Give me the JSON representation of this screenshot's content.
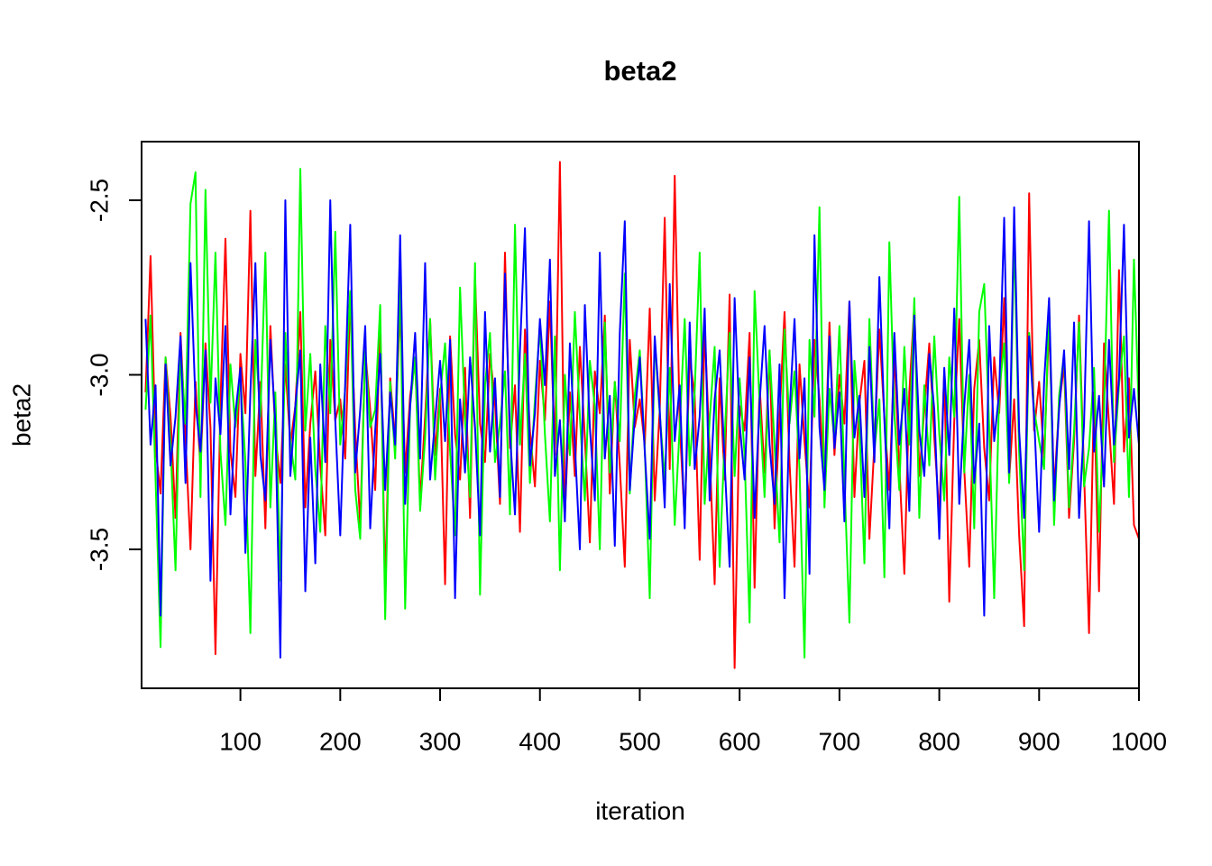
{
  "chart_data": {
    "type": "line",
    "title": "beta2",
    "x_label": "iteration",
    "y_label": "beta2",
    "xlim": [
      1,
      1000
    ],
    "ylim": [
      -3.898,
      -2.332
    ],
    "xticks": [
      100,
      200,
      300,
      400,
      500,
      600,
      700,
      800,
      900,
      1000
    ],
    "yticks": [
      -2.5,
      {
        "value": -3,
        "label": "-3.0"
      },
      -3.5
    ],
    "x": [
      5,
      10,
      15,
      20,
      25,
      30,
      35,
      40,
      45,
      50,
      55,
      60,
      65,
      70,
      75,
      80,
      85,
      90,
      95,
      100,
      105,
      110,
      115,
      120,
      125,
      130,
      135,
      140,
      145,
      150,
      155,
      160,
      165,
      170,
      175,
      180,
      185,
      190,
      195,
      200,
      205,
      210,
      215,
      220,
      225,
      230,
      235,
      240,
      245,
      250,
      255,
      260,
      265,
      270,
      275,
      280,
      285,
      290,
      295,
      300,
      305,
      310,
      315,
      320,
      325,
      330,
      335,
      340,
      345,
      350,
      355,
      360,
      365,
      370,
      375,
      380,
      385,
      390,
      395,
      400,
      405,
      410,
      415,
      420,
      425,
      430,
      435,
      440,
      445,
      450,
      455,
      460,
      465,
      470,
      475,
      480,
      485,
      490,
      495,
      500,
      505,
      510,
      515,
      520,
      525,
      530,
      535,
      540,
      545,
      550,
      555,
      560,
      565,
      570,
      575,
      580,
      585,
      590,
      595,
      600,
      605,
      610,
      615,
      620,
      625,
      630,
      635,
      640,
      645,
      650,
      655,
      660,
      665,
      670,
      675,
      680,
      685,
      690,
      695,
      700,
      705,
      710,
      715,
      720,
      725,
      730,
      735,
      740,
      745,
      750,
      755,
      760,
      765,
      770,
      775,
      780,
      785,
      790,
      795,
      800,
      805,
      810,
      815,
      820,
      825,
      830,
      835,
      840,
      845,
      850,
      855,
      860,
      865,
      870,
      875,
      880,
      885,
      890,
      895,
      900,
      905,
      910,
      915,
      920,
      925,
      930,
      935,
      940,
      945,
      950,
      955,
      960,
      965,
      970,
      975,
      980,
      985,
      990,
      995,
      1000
    ],
    "series": [
      {
        "color": "#ff0000",
        "values": [
          -3.05,
          -2.66,
          -3.21,
          -3.34,
          -2.95,
          -3.12,
          -3.41,
          -2.88,
          -3.18,
          -3.5,
          -3.02,
          -3.27,
          -2.91,
          -3.15,
          -3.8,
          -3.08,
          -2.61,
          -3.22,
          -3.35,
          -2.94,
          -3.11,
          -2.53,
          -3.29,
          -3.02,
          -3.44,
          -2.86,
          -3.17,
          -3.31,
          -2.97,
          -3.2,
          -3.09,
          -2.82,
          -3.38,
          -3.14,
          -2.99,
          -3.26,
          -3.46,
          -2.9,
          -3.13,
          -3.07,
          -3.24,
          -2.78,
          -3.16,
          -3.43,
          -2.93,
          -3.1,
          -3.33,
          -2.85,
          -3.61,
          -3.01,
          -3.19,
          -2.8,
          -3.28,
          -3.06,
          -2.96,
          -3.36,
          -3.12,
          -2.84,
          -3.23,
          -3.04,
          -3.6,
          -2.89,
          -3.17,
          -3.3,
          -2.98,
          -3.41,
          -2.72,
          -3.14,
          -3.25,
          -2.94,
          -3.08,
          -3.37,
          -2.65,
          -3.21,
          -3.03,
          -3.45,
          -2.87,
          -3.16,
          -3.32,
          -2.96,
          -3.13,
          -2.79,
          -3.23,
          -2.39,
          -3.4,
          -3.05,
          -3.29,
          -2.92,
          -3.18,
          -3.48,
          -2.99,
          -3.11,
          -2.83,
          -3.34,
          -3.02,
          -3.26,
          -3.55,
          -2.9,
          -3.15,
          -3.07,
          -3.2,
          -2.81,
          -3.36,
          -3.1,
          -2.55,
          -3.27,
          -2.43,
          -3.14,
          -3.42,
          -2.95,
          -3.06,
          -3.53,
          -2.86,
          -3.22,
          -3.6,
          -3.01,
          -3.3,
          -2.77,
          -3.84,
          -3.09,
          -3.16,
          -2.88,
          -3.61,
          -3.03,
          -3.28,
          -2.93,
          -3.44,
          -3.12,
          -2.82,
          -3.25,
          -3.55,
          -2.97,
          -3.19,
          -3.38,
          -2.9,
          -3.07,
          -3.31,
          -2.85,
          -3.23,
          -3.0,
          -3.14,
          -2.79,
          -3.35,
          -3.08,
          -2.96,
          -3.47,
          -3.2,
          -2.87,
          -3.12,
          -3.33,
          -2.94,
          -3.26,
          -3.57,
          -3.05,
          -2.8,
          -3.29,
          -3.1,
          -2.91,
          -3.18,
          -3.4,
          -2.99,
          -3.65,
          -3.13,
          -2.84,
          -3.27,
          -3.55,
          -3.04,
          -2.9,
          -3.21,
          -3.36,
          -2.95,
          -3.11,
          -2.78,
          -3.3,
          -3.07,
          -3.46,
          -3.72,
          -2.48,
          -3.16,
          -3.02,
          -3.24,
          -2.85,
          -3.33,
          -3.09,
          -2.97,
          -3.41,
          -3.19,
          -2.83,
          -3.28,
          -3.74,
          -3.05,
          -3.62,
          -2.91,
          -3.14,
          -3.37,
          -2.7,
          -3.22,
          -3.01,
          -3.43,
          -3.47
        ]
      },
      {
        "color": "#00ff00",
        "values": [
          -3.1,
          -2.83,
          -3.3,
          -3.78,
          -2.95,
          -3.2,
          -3.56,
          -2.92,
          -3.14,
          -2.51,
          -2.42,
          -3.35,
          -2.47,
          -3.08,
          -2.65,
          -3.22,
          -3.43,
          -2.97,
          -3.15,
          -3.01,
          -3.25,
          -3.74,
          -2.9,
          -3.12,
          -2.65,
          -3.38,
          -3.05,
          -3.59,
          -2.88,
          -3.19,
          -3.3,
          -2.41,
          -3.16,
          -2.94,
          -3.27,
          -3.45,
          -2.86,
          -3.11,
          -2.59,
          -3.2,
          -3.04,
          -2.76,
          -3.33,
          -3.47,
          -2.93,
          -3.15,
          -3.1,
          -2.8,
          -3.7,
          -3.02,
          -3.24,
          -2.72,
          -3.67,
          -3.09,
          -2.95,
          -3.39,
          -3.18,
          -2.84,
          -3.3,
          -3.06,
          -2.91,
          -3.22,
          -3.46,
          -2.75,
          -3.13,
          -3.35,
          -2.68,
          -3.63,
          -3.03,
          -2.88,
          -3.25,
          -3.14,
          -2.99,
          -3.4,
          -2.57,
          -3.2,
          -2.94,
          -3.31,
          -3.07,
          -2.86,
          -3.17,
          -3.42,
          -2.89,
          -3.56,
          -3.0,
          -3.23,
          -2.82,
          -3.12,
          -3.36,
          -2.96,
          -3.09,
          -3.5,
          -2.85,
          -3.28,
          -3.02,
          -3.19,
          -2.71,
          -3.34,
          -3.06,
          -2.93,
          -3.21,
          -3.64,
          -2.9,
          -3.11,
          -3.3,
          -2.98,
          -3.43,
          -3.15,
          -2.84,
          -3.26,
          -3.05,
          -2.65,
          -3.37,
          -3.13,
          -2.92,
          -3.55,
          -3.18,
          -2.88,
          -3.29,
          -3.01,
          -3.23,
          -3.71,
          -2.76,
          -3.08,
          -3.35,
          -2.93,
          -3.2,
          -3.48,
          -2.87,
          -3.14,
          -2.99,
          -3.27,
          -3.81,
          -2.9,
          -3.12,
          -2.52,
          -3.38,
          -3.04,
          -3.19,
          -2.86,
          -3.3,
          -3.71,
          -2.96,
          -3.15,
          -3.54,
          -2.84,
          -3.22,
          -3.07,
          -3.58,
          -2.62,
          -3.11,
          -3.33,
          -2.92,
          -3.2,
          -2.78,
          -3.41,
          -3.03,
          -3.26,
          -2.89,
          -3.17,
          -3.36,
          -2.95,
          -3.12,
          -2.49,
          -3.28,
          -3.0,
          -3.44,
          -2.82,
          -2.74,
          -3.15,
          -3.64,
          -3.05,
          -2.91,
          -3.31,
          -2.6,
          -3.22,
          -3.56,
          -2.88,
          -3.1,
          -3.19,
          -3.27,
          -2.79,
          -3.43,
          -3.06,
          -2.94,
          -3.38,
          -3.16,
          -2.85,
          -3.32,
          -3.21,
          -2.98,
          -3.45,
          -3.1,
          -2.53,
          -3.25,
          -3.03,
          -2.89,
          -3.35,
          -2.67,
          -3.12
        ]
      },
      {
        "color": "#0000ff",
        "values": [
          -2.84,
          -3.2,
          -3.03,
          -3.69,
          -2.97,
          -3.26,
          -3.12,
          -2.89,
          -3.31,
          -2.68,
          -3.08,
          -3.22,
          -2.93,
          -3.59,
          -3.01,
          -3.17,
          -2.86,
          -3.4,
          -3.11,
          -2.98,
          -3.51,
          -3.05,
          -2.68,
          -3.23,
          -3.36,
          -2.9,
          -3.14,
          -3.81,
          -2.5,
          -3.29,
          -3.09,
          -2.93,
          -3.62,
          -3.18,
          -3.54,
          -2.97,
          -3.25,
          -2.5,
          -3.13,
          -3.46,
          -3.02,
          -2.57,
          -3.28,
          -3.1,
          -2.86,
          -3.44,
          -3.16,
          -2.94,
          -3.33,
          -3.05,
          -3.2,
          -2.6,
          -3.37,
          -3.09,
          -2.88,
          -3.24,
          -2.68,
          -3.3,
          -3.13,
          -2.96,
          -3.19,
          -2.9,
          -3.64,
          -3.07,
          -3.28,
          -2.95,
          -3.15,
          -3.46,
          -2.82,
          -3.22,
          -3.01,
          -3.35,
          -2.71,
          -3.17,
          -3.4,
          -2.93,
          -2.58,
          -3.26,
          -3.11,
          -2.84,
          -3.03,
          -2.67,
          -3.29,
          -3.13,
          -3.42,
          -2.91,
          -3.2,
          -3.5,
          -2.8,
          -3.15,
          -3.36,
          -2.65,
          -3.24,
          -3.06,
          -3.49,
          -2.88,
          -2.56,
          -3.33,
          -3.12,
          -2.95,
          -3.22,
          -3.47,
          -2.89,
          -3.1,
          -3.38,
          -2.74,
          -3.19,
          -3.03,
          -3.44,
          -2.85,
          -3.27,
          -3.12,
          -2.81,
          -3.36,
          -3.07,
          -2.93,
          -3.25,
          -3.55,
          -2.78,
          -3.14,
          -3.3,
          -2.95,
          -3.41,
          -3.08,
          -2.86,
          -3.2,
          -3.37,
          -2.97,
          -3.64,
          -3.11,
          -2.84,
          -3.24,
          -3.01,
          -3.57,
          -2.6,
          -3.15,
          -3.33,
          -2.89,
          -3.21,
          -3.05,
          -3.42,
          -2.79,
          -3.18,
          -3.06,
          -3.35,
          -2.92,
          -3.25,
          -2.72,
          -3.13,
          -3.44,
          -2.88,
          -3.2,
          -3.04,
          -3.39,
          -2.83,
          -3.16,
          -3.29,
          -2.94,
          -3.1,
          -3.47,
          -2.98,
          -3.23,
          -2.81,
          -3.37,
          -3.09,
          -2.9,
          -3.31,
          -3.14,
          -3.69,
          -2.86,
          -3.19,
          -3.05,
          -2.55,
          -3.28,
          -2.52,
          -3.16,
          -3.41,
          -2.89,
          -3.12,
          -3.45,
          -3.02,
          -2.78,
          -3.36,
          -3.1,
          -2.93,
          -3.27,
          -2.85,
          -3.41,
          -3.14,
          -2.56,
          -3.22,
          -3.06,
          -3.32,
          -2.9,
          -3.2,
          -3.01,
          -2.57,
          -3.18,
          -3.04,
          -3.2
        ]
      }
    ]
  }
}
